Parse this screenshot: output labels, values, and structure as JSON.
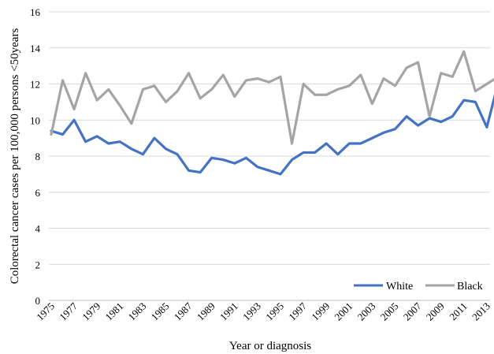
{
  "chart_data": {
    "type": "line",
    "title": "",
    "xlabel": "Year or diagnosis",
    "ylabel": "Colorectal cancer cases per 100,000 persons  <50years",
    "ylim": [
      0,
      16
    ],
    "yticks": [
      0,
      2,
      4,
      6,
      8,
      10,
      12,
      14,
      16
    ],
    "x": [
      1975,
      1976,
      1977,
      1978,
      1979,
      1980,
      1981,
      1982,
      1983,
      1984,
      1985,
      1986,
      1987,
      1988,
      1989,
      1990,
      1991,
      1992,
      1993,
      1994,
      1995,
      1996,
      1997,
      1998,
      1999,
      2000,
      2001,
      2002,
      2003,
      2004,
      2005,
      2006,
      2007,
      2008,
      2009,
      2010,
      2011,
      2012,
      2013,
      2014
    ],
    "xtick_labels": [
      "1975",
      "1977",
      "1979",
      "1981",
      "1983",
      "1985",
      "1987",
      "1989",
      "1991",
      "1993",
      "1995",
      "1997",
      "1999",
      "2001",
      "2003",
      "2005",
      "2007",
      "2009",
      "2011",
      "2013"
    ],
    "grid": true,
    "legend": "bottom-right",
    "series": [
      {
        "name": "White",
        "color": "#4472c4",
        "values": [
          9.4,
          9.2,
          10.0,
          8.8,
          9.1,
          8.7,
          8.8,
          8.4,
          8.1,
          9.0,
          8.4,
          8.1,
          7.2,
          7.1,
          7.9,
          7.8,
          7.6,
          7.9,
          7.4,
          7.2,
          7.0,
          7.8,
          8.2,
          8.2,
          8.7,
          8.1,
          8.7,
          8.7,
          9.0,
          9.3,
          9.5,
          10.2,
          9.7,
          10.1,
          9.9,
          10.2,
          11.1,
          11.0,
          9.6,
          12.1
        ]
      },
      {
        "name": "Black",
        "color": "#a5a5a5",
        "values": [
          9.2,
          12.2,
          10.6,
          12.6,
          11.1,
          11.7,
          10.8,
          9.8,
          11.7,
          11.9,
          11.0,
          11.6,
          12.6,
          11.2,
          11.7,
          12.5,
          11.3,
          12.2,
          12.3,
          12.1,
          12.4,
          8.7,
          12.0,
          11.4,
          11.4,
          11.7,
          11.9,
          12.5,
          10.9,
          12.3,
          11.9,
          12.9,
          13.2,
          10.2,
          12.6,
          12.4,
          13.8,
          11.6,
          12.0,
          12.4
        ]
      }
    ]
  }
}
